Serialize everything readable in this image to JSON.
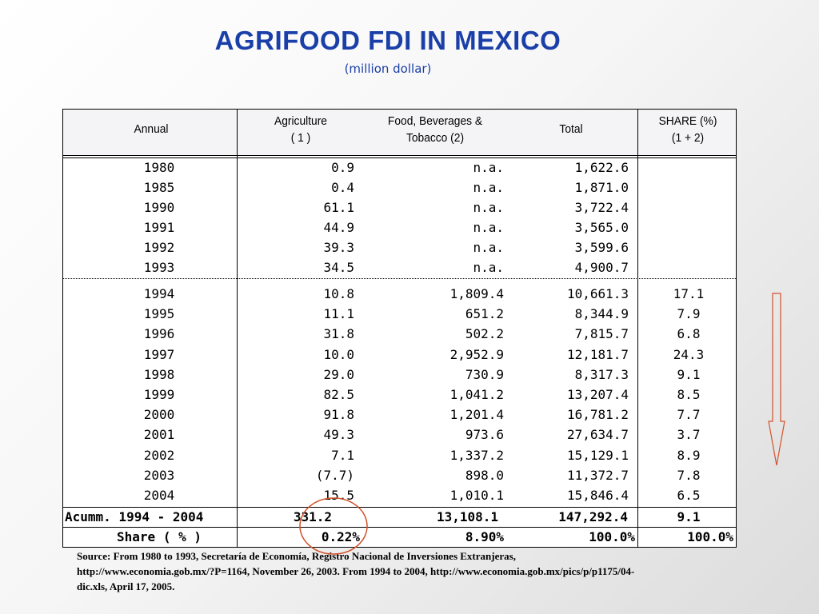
{
  "slide": {
    "title": "AGRIFOOD FDI IN MEXICO",
    "subtitle": "(million dollar)"
  },
  "table": {
    "headers": {
      "annual": "Annual",
      "agriculture_1": "Agriculture",
      "agriculture_2": "( 1 )",
      "food_1": "Food, Beverages &",
      "food_2": "Tobacco (2)",
      "total": "Total",
      "share_1": "SHARE (%)",
      "share_2": "(1 + 2)"
    },
    "rows": [
      {
        "year": "1980",
        "agriculture": "0.9",
        "food": "n.a.",
        "total": "1,622.6",
        "share": ""
      },
      {
        "year": "1985",
        "agriculture": "0.4",
        "food": "n.a.",
        "total": "1,871.0",
        "share": ""
      },
      {
        "year": "1990",
        "agriculture": "61.1",
        "food": "n.a.",
        "total": "3,722.4",
        "share": ""
      },
      {
        "year": "1991",
        "agriculture": "44.9",
        "food": "n.a.",
        "total": "3,565.0",
        "share": ""
      },
      {
        "year": "1992",
        "agriculture": "39.3",
        "food": "n.a.",
        "total": "3,599.6",
        "share": ""
      },
      {
        "year": "1993",
        "agriculture": "34.5",
        "food": "n.a.",
        "total": "4,900.7",
        "share": ""
      },
      {
        "year": "1994",
        "agriculture": "10.8",
        "food": "1,809.4",
        "total": "10,661.3",
        "share": "17.1"
      },
      {
        "year": "1995",
        "agriculture": "11.1",
        "food": "651.2",
        "total": "8,344.9",
        "share": "7.9"
      },
      {
        "year": "1996",
        "agriculture": "31.8",
        "food": "502.2",
        "total": "7,815.7",
        "share": "6.8"
      },
      {
        "year": "1997",
        "agriculture": "10.0",
        "food": "2,952.9",
        "total": "12,181.7",
        "share": "24.3"
      },
      {
        "year": "1998",
        "agriculture": "29.0",
        "food": "730.9",
        "total": "8,317.3",
        "share": "9.1"
      },
      {
        "year": "1999",
        "agriculture": "82.5",
        "food": "1,041.2",
        "total": "13,207.4",
        "share": "8.5"
      },
      {
        "year": "2000",
        "agriculture": "91.8",
        "food": "1,201.4",
        "total": "16,781.2",
        "share": "7.7"
      },
      {
        "year": "2001",
        "agriculture": "49.3",
        "food": "973.6",
        "total": "27,634.7",
        "share": "3.7"
      },
      {
        "year": "2002",
        "agriculture": "7.1",
        "food": "1,337.2",
        "total": "15,129.1",
        "share": "8.9"
      },
      {
        "year": "2003",
        "agriculture": "(7.7)",
        "food": "898.0",
        "total": "11,372.7",
        "share": "7.8"
      },
      {
        "year": "2004",
        "agriculture": "15.5",
        "food": "1,010.1",
        "total": "15,846.4",
        "share": "6.5"
      }
    ],
    "accum": {
      "label": "Acumm. 1994 - 2004",
      "agriculture": "331.2",
      "food": "13,108.1",
      "total": "147,292.4",
      "share": "9.1"
    },
    "share_row": {
      "label": "Share ( % )",
      "agriculture": "0.22%",
      "food": "8.90%",
      "total": "100.0%",
      "share": "100.0%"
    }
  },
  "source": {
    "line1": "Source: From 1980 to 1993, Secretaría de Economía, Registro Nacional de Inversiones Extranjeras,",
    "line2": "http://www.economia.gob.mx/?P=1164, November 26, 2003. From 1994 to 2004, http://www.economia.gob.mx/pics/p/p1175/04-",
    "line3": "dic.xls, April 17, 2005."
  },
  "colors": {
    "title": "#1a3fa8",
    "annotation": "#d2522a"
  }
}
